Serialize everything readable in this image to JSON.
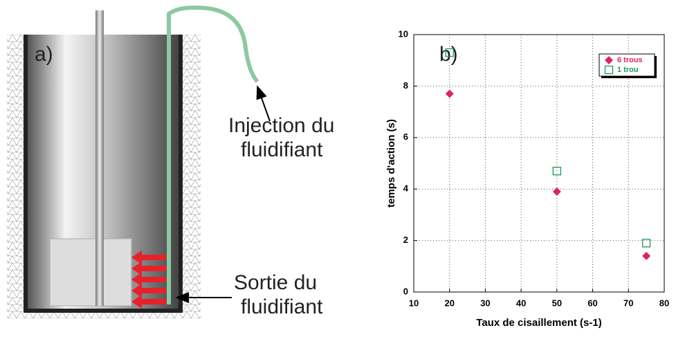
{
  "diagram": {
    "panel_label": "a)",
    "injection": [
      "Injection du",
      "fluidifiant"
    ],
    "sortie": [
      "Sortie du",
      "fluidifiant"
    ]
  },
  "chart_data": {
    "type": "scatter",
    "panel_label": "b)",
    "x_label": "Taux de cisaillement (s-1)",
    "y_label": "temps d'action (s)",
    "x": [
      20,
      50,
      75
    ],
    "series": [
      {
        "name": "6 trous",
        "color": "#e0245e",
        "marker": "diamond",
        "values": [
          7.7,
          3.9,
          1.4
        ]
      },
      {
        "name": "1 trou",
        "color": "#1a9a5a",
        "marker": "square",
        "values": [
          9.3,
          4.7,
          1.9
        ]
      }
    ],
    "xlim": [
      10,
      80
    ],
    "xticks": [
      10,
      20,
      30,
      40,
      50,
      60,
      70,
      80
    ],
    "ylim": [
      0,
      10
    ],
    "yticks": [
      0,
      2,
      4,
      6,
      8,
      10
    ],
    "grid": true,
    "legend": "top-right"
  }
}
